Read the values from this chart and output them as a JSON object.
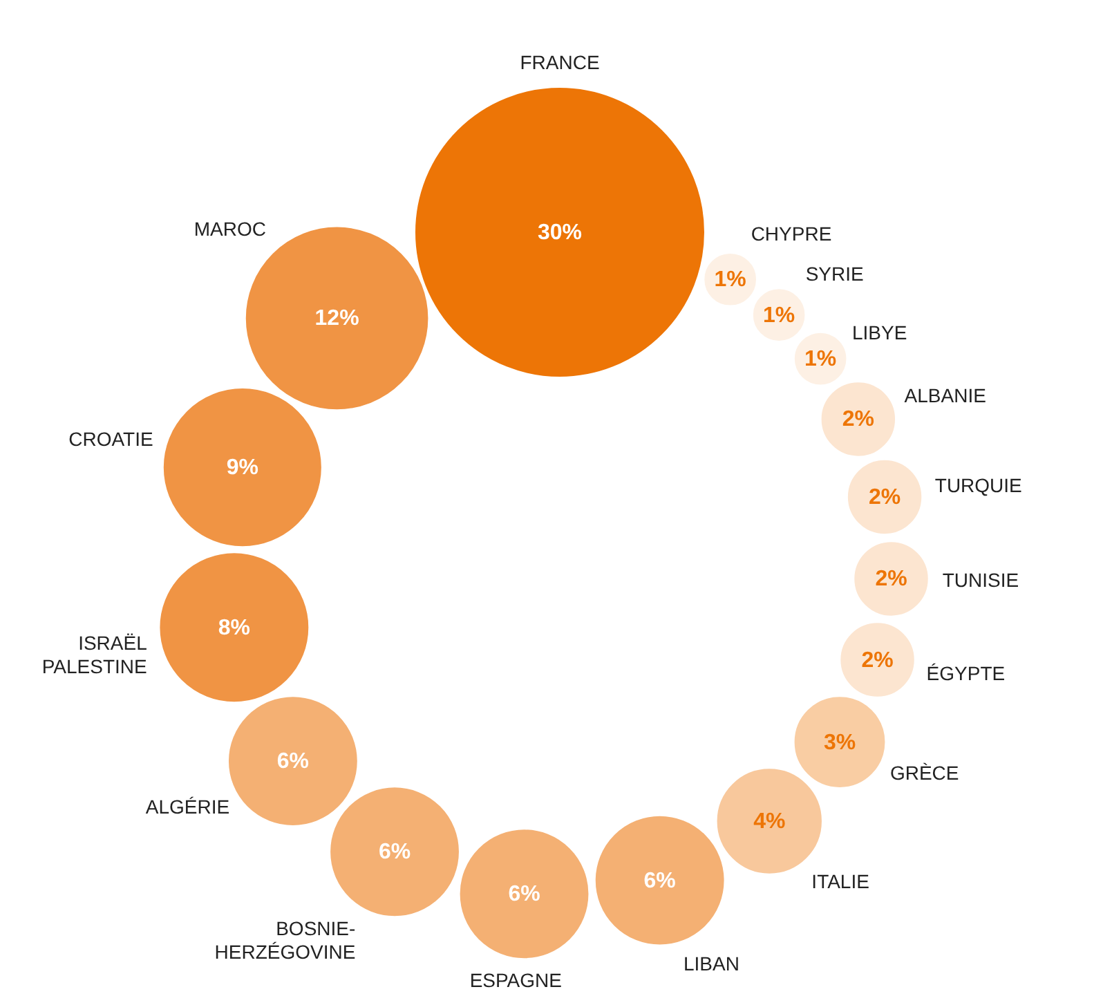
{
  "chart_data": {
    "type": "other",
    "categories": [
      "FRANCE",
      "MAROC",
      "CROATIE",
      "ISRAËL PALESTINE",
      "ALGÉRIE",
      "BOSNIE-HERZÉGOVINE",
      "ESPAGNE",
      "LIBAN",
      "ITALIE",
      "GRÈCE",
      "ÉGYPTE",
      "TUNISIE",
      "TURQUIE",
      "ALBANIE",
      "LIBYE",
      "SYRIE",
      "CHYPRE"
    ],
    "values": [
      30,
      12,
      9,
      8,
      6,
      6,
      6,
      6,
      4,
      3,
      2,
      2,
      2,
      2,
      1,
      1,
      1
    ],
    "value_labels": [
      "30%",
      "12%",
      "9%",
      "8%",
      "6%",
      "6%",
      "6%",
      "6%",
      "4%",
      "3%",
      "2%",
      "2%",
      "2%",
      "2%",
      "1%",
      "1%",
      "1%"
    ],
    "colors": [
      "#ed7506",
      "#f09444",
      "#f09444",
      "#f09444",
      "#f4b073",
      "#f4b073",
      "#f4b073",
      "#f4b073",
      "#f8c89c",
      "#f9cda3",
      "#fce5d0",
      "#fce5d0",
      "#fce5d0",
      "#fce5d0",
      "#fdf0e4",
      "#fdf0e4",
      "#fdf0e4"
    ]
  }
}
